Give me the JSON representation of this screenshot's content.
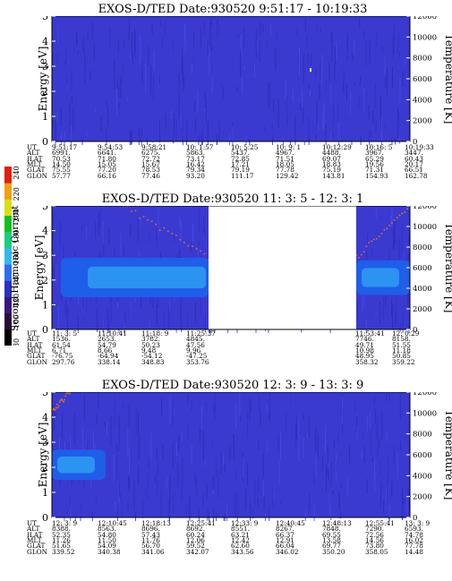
{
  "colorbar": {
    "label": "Second Harmonic Current",
    "ticks": [
      "80",
      "100",
      "120",
      "140",
      "160",
      "180",
      "200",
      "220",
      "240"
    ],
    "colors": [
      "#000000",
      "#2c0a3c",
      "#3a1580",
      "#2b2fc8",
      "#2f6cf0",
      "#30b9f0",
      "#18d080",
      "#10c020",
      "#d8e010",
      "#f0a010",
      "#e02010"
    ]
  },
  "panels": [
    {
      "title": "EXOS-D/TED   Date:930520  9:51:17 - 10:19:33",
      "ylabel": "Energy [eV]",
      "y2label": "Temperature [K]",
      "yticks": [
        "0",
        "1",
        "2",
        "3",
        "4",
        "5"
      ],
      "y2ticks": [
        "0",
        "2000",
        "4000",
        "6000",
        "8000",
        "10000",
        "12000"
      ],
      "table_labels": [
        "UT",
        "ALT",
        "ILAT",
        "MLT",
        "GLAT",
        "GLON"
      ],
      "columns": [
        [
          "9:51:17",
          "6991.",
          "70.53",
          "14.50",
          "75.55",
          "57.77"
        ],
        [
          "9:54:53",
          "6641.",
          "71.80",
          "15.05",
          "77.20",
          "66.16"
        ],
        [
          "9:58:21",
          "6275.",
          "72.72",
          "15.67",
          "78.53",
          "77.46"
        ],
        [
          "10: 1:57",
          "5863.",
          "73.17",
          "16.42",
          "79.34",
          "93.20"
        ],
        [
          "10: 5:25",
          "5437.",
          "72.85",
          "17.21",
          "79.19",
          "111.17"
        ],
        [
          "10: 9: 1",
          "4967.",
          "71.51",
          "18.05",
          "77.78",
          "129.42"
        ],
        [
          "10:12:29",
          "4488.",
          "69.07",
          "18.83",
          "75.19",
          "143.81"
        ],
        [
          "10:16: 5",
          "3967.",
          "65.29",
          "19.56",
          "71.31",
          "154.93"
        ],
        [
          "10:19:33",
          "3447.",
          "60.43",
          "20.17",
          "66.51",
          "162.78"
        ]
      ]
    },
    {
      "title": "EXOS-D/TED   Date:930520  11: 3: 5 - 12: 3: 1",
      "ylabel": "Energy [eV]",
      "y2label": "Temperature [K]",
      "yticks": [
        "0",
        "1",
        "2",
        "3",
        "4",
        "5"
      ],
      "y2ticks": [
        "0",
        "2000",
        "4000",
        "6000",
        "8000",
        "10000",
        "12000"
      ],
      "table_labels": [
        "UT",
        "ALT",
        "ILAT",
        "MLT",
        "GLAT",
        "GLON"
      ],
      "columns": [
        [
          "11: 3: 5",
          "1536.",
          "61.54",
          "6.71",
          "-76.75",
          "297.76"
        ],
        [
          "11:10:41",
          "2653.",
          "54.79",
          "8.66",
          "-64.94",
          "338.14"
        ],
        [
          "11:18: 9",
          "3782.",
          "50.23",
          "9.48",
          "-54.12",
          "348.83"
        ],
        [
          "11:25:37",
          "4845.",
          "47.56",
          "9.96",
          "-47.25",
          "353.76"
        ],
        [
          "11:53:41",
          "7746.",
          "49.71",
          "10.98",
          "48.95",
          "358.32"
        ],
        [
          "12: 0:29",
          "8158.",
          "51.55",
          "11.18",
          "50.85",
          "359.22"
        ]
      ]
    },
    {
      "title": "EXOS-D/TED   Date:930520  12: 3: 9 - 13: 3: 9",
      "ylabel": "Energy [eV]",
      "y2label": "Temperature [K]",
      "yticks": [
        "0",
        "1",
        "2",
        "3",
        "4",
        "5"
      ],
      "y2ticks": [
        "0",
        "2000",
        "4000",
        "6000",
        "8000",
        "10000",
        "12000"
      ],
      "table_labels": [
        "UT",
        "ALT",
        "ILAT",
        "MLT",
        "GLAT",
        "GLON"
      ],
      "columns": [
        [
          "12: 3: 9",
          "8388.",
          "52.35",
          "11.26",
          "51.65",
          "339.52"
        ],
        [
          "12:10:45",
          "8563.",
          "54.80",
          "11.50",
          "54.09",
          "340.38"
        ],
        [
          "12:18:13",
          "8696.",
          "57.43",
          "11.76",
          "56.70",
          "341.06"
        ],
        [
          "12:25:41",
          "8692.",
          "60.24",
          "12.06",
          "59.52",
          "342.07"
        ],
        [
          "12:33: 9",
          "8551.",
          "63.21",
          "12.42",
          "62.60",
          "343.56"
        ],
        [
          "12:40:45",
          "8267.",
          "66.37",
          "12.91",
          "66.04",
          "346.02"
        ],
        [
          "12:48:13",
          "7848.",
          "69.55",
          "13.58",
          "69.77",
          "350.20"
        ],
        [
          "12:55:41",
          "7290.",
          "72.56",
          "14.56",
          "73.80",
          "358.05"
        ],
        [
          "13: 3: 9",
          "6593.",
          "74.78",
          "16.02",
          "77.78",
          "14.48"
        ]
      ]
    }
  ],
  "chart_data": [
    {
      "type": "heatmap",
      "title": "EXOS-D/TED   Date:930520  9:51:17 - 10:19:33",
      "xlabel": "UT",
      "ylabel": "Energy [eV]",
      "y2label": "Temperature [K]",
      "ylim": [
        0,
        5
      ],
      "y2lim": [
        0,
        12000
      ],
      "colorbar_label": "Second Harmonic Current",
      "colorbar_range": [
        80,
        240
      ],
      "background_level": 140,
      "features": [
        {
          "kind": "point",
          "ut": "10:12:29",
          "energy": 2.85,
          "level": 220
        }
      ]
    },
    {
      "type": "heatmap",
      "title": "EXOS-D/TED   Date:930520  11: 3: 5 - 12: 3: 1",
      "xlabel": "UT",
      "ylabel": "Energy [eV]",
      "y2label": "Temperature [K]",
      "ylim": [
        0,
        5
      ],
      "y2lim": [
        0,
        12000
      ],
      "colorbar_label": "Second Harmonic Current",
      "colorbar_range": [
        80,
        240
      ],
      "background_level": 140,
      "data_gap": [
        "11:25:37",
        "11:53:41"
      ],
      "features": [
        {
          "kind": "band",
          "ut_start": "11: 3: 5",
          "ut_end": "11:25:37",
          "energy_center": 2.1,
          "energy_halfwidth": 0.8,
          "level": 170
        },
        {
          "kind": "band",
          "ut_start": "11:53:41",
          "ut_end": "12: 3: 1",
          "energy_center": 2.1,
          "energy_halfwidth": 0.7,
          "level": 165
        },
        {
          "kind": "temperature_points",
          "ut_start": "11:10:41",
          "ut_end": "11:25:37",
          "temperature_k_start": 12000,
          "temperature_k_end": 7000
        },
        {
          "kind": "temperature_points",
          "ut_start": "11:53:41",
          "ut_end": "12: 3: 1",
          "temperature_k_start": 7000,
          "temperature_k_end": 12000
        }
      ]
    },
    {
      "type": "heatmap",
      "title": "EXOS-D/TED   Date:930520  12: 3: 9 - 13: 3: 9",
      "xlabel": "UT",
      "ylabel": "Energy [eV]",
      "y2label": "Temperature [K]",
      "ylim": [
        0,
        5
      ],
      "y2lim": [
        0,
        12000
      ],
      "colorbar_label": "Second Harmonic Current",
      "colorbar_range": [
        80,
        240
      ],
      "background_level": 140,
      "features": [
        {
          "kind": "band",
          "ut_start": "12: 3: 9",
          "ut_end": "12:15:00",
          "energy_center": 2.1,
          "energy_halfwidth": 0.6,
          "level": 165
        },
        {
          "kind": "temperature_points",
          "ut_start": "12: 3: 9",
          "ut_end": "12: 8: 0",
          "temperature_k_start": 10000,
          "temperature_k_end": 12000
        }
      ]
    }
  ]
}
